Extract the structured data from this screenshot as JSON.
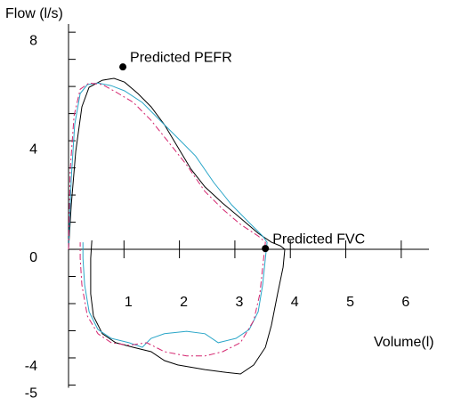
{
  "chart_data": {
    "type": "line",
    "y_label": "Flow (l/s)",
    "x_label": "Volume(l)",
    "xlim": [
      0,
      6.5
    ],
    "ylim": [
      -5.1,
      8.3
    ],
    "xticks": [
      1,
      2,
      3,
      4,
      5,
      6
    ],
    "yticks": [
      8,
      4,
      0,
      -4,
      -5
    ],
    "yminorticks": [
      7,
      6,
      5,
      3,
      2,
      1,
      -1,
      -2,
      -3
    ],
    "series": [
      {
        "color": "#000000",
        "dashed": false,
        "x": [
          0,
          0.05,
          0.13,
          0.24,
          0.37,
          0.61,
          0.82,
          1.01,
          1.25,
          1.49,
          1.73,
          1.97,
          2.21,
          2.46,
          2.78,
          3.1,
          3.42,
          3.66,
          3.82,
          3.9,
          3.87,
          3.77,
          3.66,
          3.55,
          3.34,
          3.1,
          2.78,
          2.46,
          1.97,
          1.73,
          1.49,
          1.17,
          0.85,
          0.61,
          0.45,
          0.4,
          0.4,
          0.42
        ],
        "values": [
          0,
          1.64,
          3.61,
          5.25,
          5.97,
          6.23,
          6.3,
          6.16,
          5.74,
          5.25,
          4.59,
          3.77,
          2.95,
          2.3,
          1.7,
          1.15,
          0.59,
          0.26,
          0.13,
          0,
          -0.66,
          -1.64,
          -2.79,
          -3.61,
          -4.26,
          -4.59,
          -4.52,
          -4.43,
          -4.26,
          -4.1,
          -3.77,
          -3.61,
          -3.44,
          -3.11,
          -2.46,
          -1.64,
          -0.33,
          0.33
        ]
      },
      {
        "color": "#2aa6c8",
        "dashed": false,
        "x": [
          0,
          0.05,
          0.11,
          0.21,
          0.34,
          0.53,
          0.77,
          1.01,
          1.33,
          1.65,
          1.97,
          2.29,
          2.62,
          2.94,
          3.26,
          3.5,
          3.58,
          3.55,
          3.5,
          3.42,
          3.26,
          3.02,
          2.7,
          2.46,
          2.13,
          1.73,
          1.49,
          1.33,
          1.09,
          0.77,
          0.53,
          0.37,
          0.29,
          0.26,
          0.26
        ],
        "values": [
          0,
          2.62,
          4.59,
          5.74,
          6.07,
          6.13,
          6.03,
          5.84,
          5.41,
          4.75,
          4.1,
          3.44,
          2.46,
          1.64,
          0.98,
          0.49,
          0.26,
          -0.33,
          -1.31,
          -2.3,
          -2.95,
          -3.28,
          -3.44,
          -3.11,
          -3.02,
          -3.11,
          -3.28,
          -3.61,
          -3.44,
          -3.28,
          -2.95,
          -2.3,
          -1.31,
          -0.33,
          0.26
        ]
      },
      {
        "color": "#d4246e",
        "dashed": true,
        "x": [
          0,
          0.03,
          0.1,
          0.21,
          0.37,
          0.61,
          0.85,
          1.17,
          1.49,
          1.81,
          2.13,
          2.46,
          2.78,
          3.1,
          3.42,
          3.55,
          3.51,
          3.45,
          3.34,
          3.1,
          2.78,
          2.46,
          2.13,
          1.73,
          1.41,
          1.09,
          0.77,
          0.53,
          0.34,
          0.24,
          0.21,
          0.21
        ],
        "values": [
          0,
          2.95,
          4.92,
          5.9,
          6.13,
          6.07,
          5.8,
          5.41,
          4.75,
          3.93,
          3.11,
          2.13,
          1.48,
          0.92,
          0.49,
          0.26,
          -0.49,
          -1.64,
          -2.62,
          -3.44,
          -3.77,
          -3.93,
          -3.93,
          -3.77,
          -3.44,
          -3.54,
          -3.44,
          -3.11,
          -2.46,
          -1.31,
          -0.33,
          0.26
        ]
      }
    ],
    "annotations": [
      {
        "text": "Predicted PEFR",
        "x": 0.98,
        "y": 6.72
      },
      {
        "text": "Predicted FVC",
        "x": 3.55,
        "y": 0.03
      }
    ]
  }
}
